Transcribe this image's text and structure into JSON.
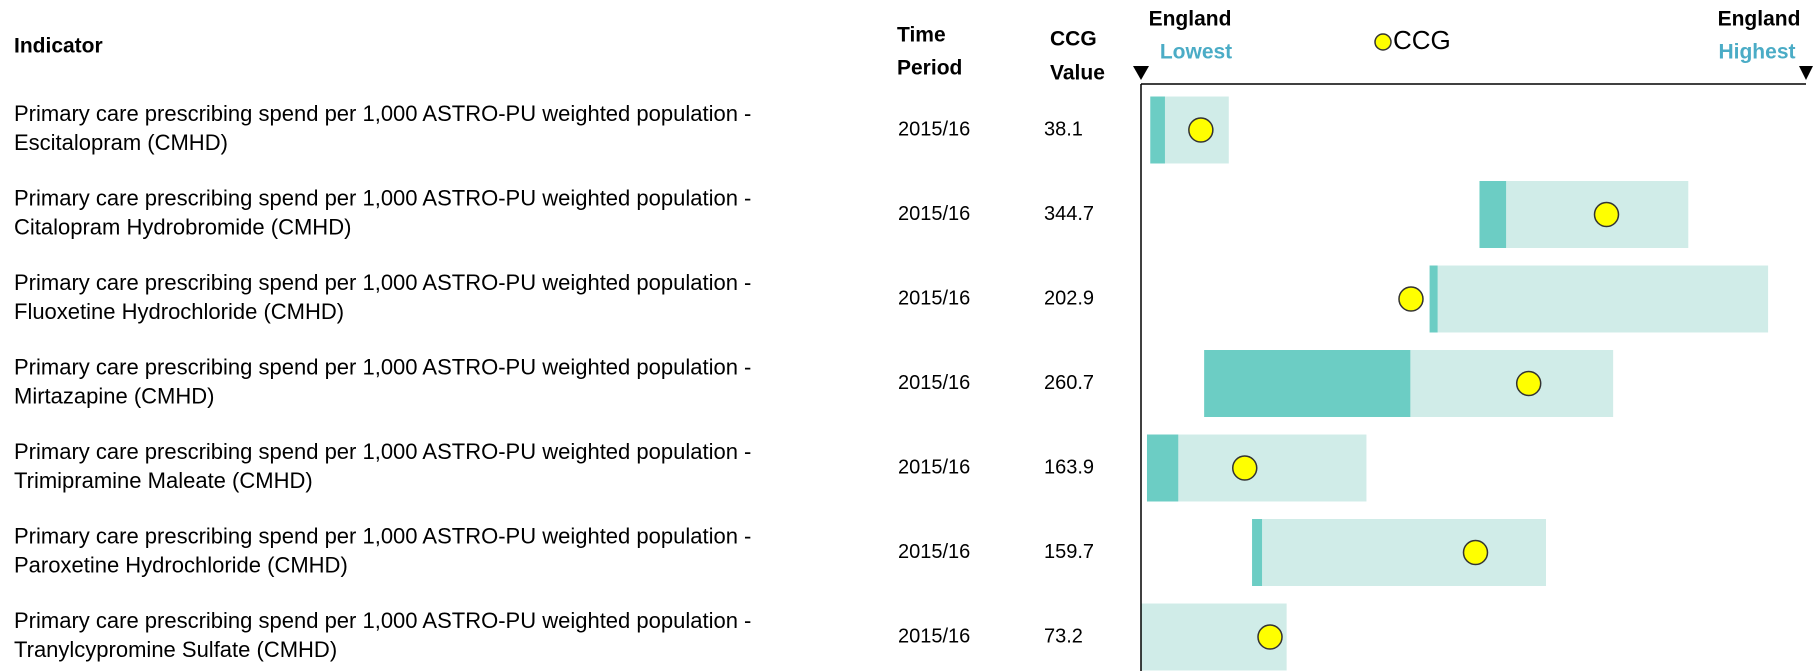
{
  "header": {
    "indicator": "Indicator",
    "time_period": [
      "Time",
      "Period"
    ],
    "ccg_value": [
      "CCG",
      "Value"
    ],
    "left_label": [
      "England",
      "Lowest"
    ],
    "right_label": [
      "England",
      "Highest"
    ],
    "legend": "CCG"
  },
  "colors": {
    "range": "#d0ece8",
    "quartile": "#6ccdc4",
    "ccg": "#ffff00"
  },
  "rows": [
    {
      "indicator": [
        "Primary care prescribing spend per 1,000 ASTRO-PU weighted population -",
        "Escitalopram (CMHD)"
      ],
      "time_period": "2015/16",
      "ccg_value": "38.1",
      "bar": {
        "dark_start": 1.4,
        "dark_end": 3.6,
        "light_end": 13.2,
        "ccg": 9.0
      }
    },
    {
      "indicator": [
        "Primary care prescribing spend per 1,000 ASTRO-PU weighted population -",
        "Citalopram Hydrobromide (CMHD)"
      ],
      "time_period": "2015/16",
      "ccg_value": "344.7",
      "bar": {
        "dark_start": 50.9,
        "dark_end": 54.9,
        "light_end": 82.3,
        "ccg": 70.0
      }
    },
    {
      "indicator": [
        "Primary care prescribing spend per 1,000 ASTRO-PU weighted population -",
        "Fluoxetine Hydrochloride (CMHD)"
      ],
      "time_period": "2015/16",
      "ccg_value": "202.9",
      "bar": {
        "dark_start": 43.4,
        "dark_end": 44.6,
        "light_end": 94.3,
        "ccg": 40.6
      }
    },
    {
      "indicator": [
        "Primary care prescribing spend per 1,000 ASTRO-PU weighted population -",
        "Mirtazapine (CMHD)"
      ],
      "time_period": "2015/16",
      "ccg_value": "260.7",
      "bar": {
        "dark_start": 9.5,
        "dark_end": 40.5,
        "light_end": 71.0,
        "ccg": 58.3
      }
    },
    {
      "indicator": [
        "Primary care prescribing spend per 1,000 ASTRO-PU weighted population -",
        "Trimipramine Maleate (CMHD)"
      ],
      "time_period": "2015/16",
      "ccg_value": "163.9",
      "bar": {
        "dark_start": 0.9,
        "dark_end": 5.6,
        "light_end": 33.9,
        "ccg": 15.6
      }
    },
    {
      "indicator": [
        "Primary care prescribing spend per 1,000 ASTRO-PU weighted population -",
        "Paroxetine Hydrochloride (CMHD)"
      ],
      "time_period": "2015/16",
      "ccg_value": "159.7",
      "bar": {
        "dark_start": 16.7,
        "dark_end": 18.2,
        "light_end": 60.9,
        "ccg": 50.3
      }
    },
    {
      "indicator": [
        "Primary care prescribing spend per 1,000 ASTRO-PU weighted population -",
        "Tranylcypromine Sulfate (CMHD)"
      ],
      "time_period": "2015/16",
      "ccg_value": "73.2",
      "bar": {
        "dark_start": 0,
        "dark_end": 0,
        "light_end": 21.9,
        "ccg": 19.4
      }
    }
  ]
}
